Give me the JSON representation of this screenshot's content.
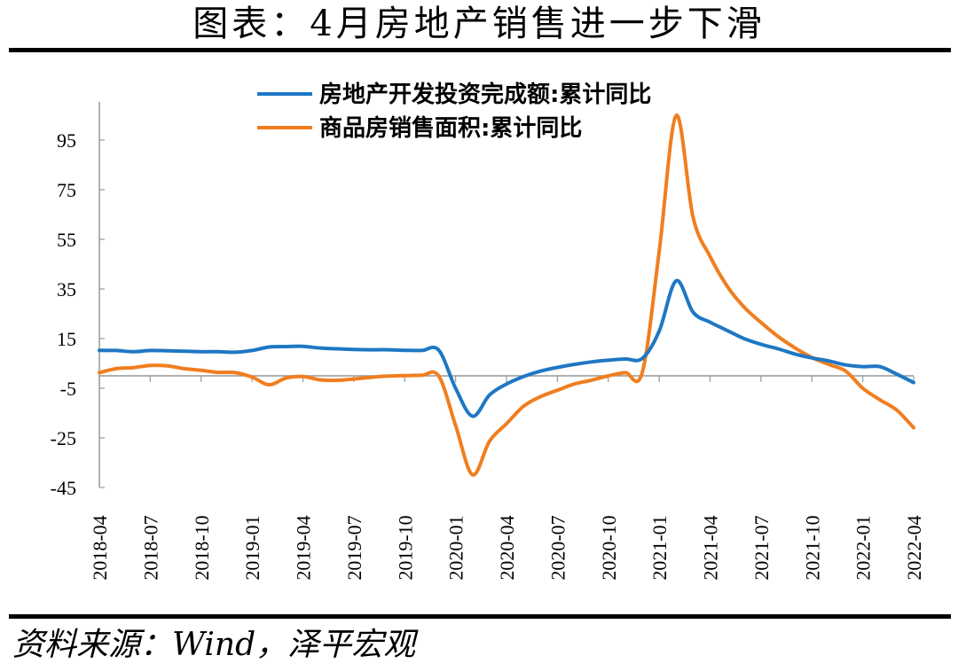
{
  "header": {
    "title": "图表：4月房地产销售进一步下滑"
  },
  "footer": {
    "source": "资料来源：Wind，泽平宏观"
  },
  "colors": {
    "series1": "#1f77c4",
    "series2": "#f07e1f",
    "axis": "#999999"
  },
  "chart_data": {
    "type": "line",
    "title": "",
    "xlabel": "",
    "ylabel": "",
    "ylim": [
      -45,
      110
    ],
    "yticks": [
      95,
      75,
      55,
      35,
      15,
      -5,
      -25,
      -45
    ],
    "x_tick_labels": [
      "2018-04",
      "2018-07",
      "2018-10",
      "2019-01",
      "2019-04",
      "2019-07",
      "2019-10",
      "2020-01",
      "2020-04",
      "2020-07",
      "2020-10",
      "2021-01",
      "2021-04",
      "2021-07",
      "2021-10",
      "2022-01",
      "2022-04"
    ],
    "legend_position": "top-center",
    "grid": false,
    "x": [
      "2018-04",
      "2018-05",
      "2018-06",
      "2018-07",
      "2018-08",
      "2018-09",
      "2018-10",
      "2018-11",
      "2018-12",
      "2019-01",
      "2019-02",
      "2019-03",
      "2019-04",
      "2019-05",
      "2019-06",
      "2019-07",
      "2019-08",
      "2019-09",
      "2019-10",
      "2019-11",
      "2019-12",
      "2020-01",
      "2020-02",
      "2020-03",
      "2020-04",
      "2020-05",
      "2020-06",
      "2020-07",
      "2020-08",
      "2020-09",
      "2020-10",
      "2020-11",
      "2020-12",
      "2021-01",
      "2021-02",
      "2021-03",
      "2021-04",
      "2021-05",
      "2021-06",
      "2021-07",
      "2021-08",
      "2021-09",
      "2021-10",
      "2021-11",
      "2021-12",
      "2022-01",
      "2022-02",
      "2022-03",
      "2022-04"
    ],
    "series": [
      {
        "name": "房地产开发投资完成额:累计同比",
        "values": [
          10.3,
          10.2,
          9.7,
          10.2,
          10.1,
          9.9,
          9.7,
          9.7,
          9.5,
          10.2,
          11.6,
          11.8,
          11.9,
          11.2,
          10.9,
          10.6,
          10.5,
          10.5,
          10.3,
          10.2,
          10.4,
          -5,
          -16.3,
          -7.7,
          -3.3,
          -0.3,
          1.9,
          3.4,
          4.6,
          5.6,
          6.3,
          6.8,
          7.0,
          18,
          38.3,
          25.6,
          21.6,
          18.3,
          15.0,
          12.7,
          10.9,
          8.8,
          7.2,
          6.0,
          4.4,
          3.7,
          3.7,
          0.7,
          -2.7
        ]
      },
      {
        "name": "商品房销售面积:累计同比",
        "values": [
          1.3,
          2.9,
          3.3,
          4.2,
          4.0,
          2.9,
          2.2,
          1.4,
          1.3,
          -0.5,
          -3.6,
          -0.9,
          -0.3,
          -1.6,
          -1.8,
          -1.3,
          -0.6,
          -0.1,
          0.1,
          0.2,
          0,
          -20,
          -39.9,
          -26.3,
          -19.3,
          -12.3,
          -8.4,
          -5.8,
          -3.3,
          -1.8,
          0,
          1.3,
          1.3,
          50,
          104.9,
          63.8,
          48.1,
          36.2,
          27.7,
          21.5,
          15.9,
          11.3,
          7.4,
          4.6,
          1.9,
          -5,
          -9.6,
          -13.8,
          -20.9
        ]
      }
    ]
  }
}
